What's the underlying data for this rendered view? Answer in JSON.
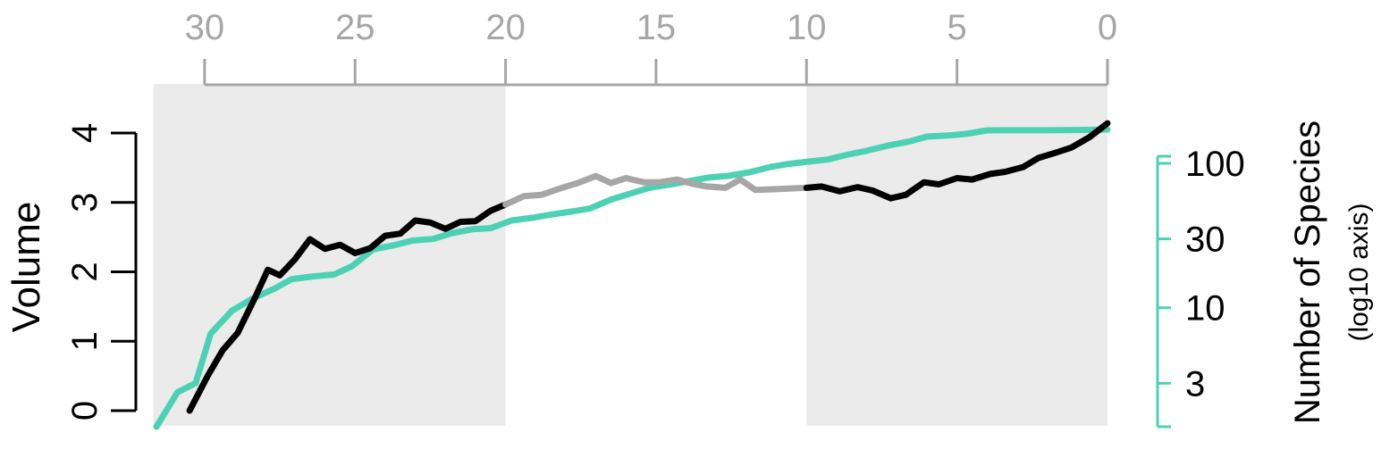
{
  "chart_data": {
    "type": "line",
    "title": "",
    "x_axis": {
      "label": "",
      "reversed": true,
      "range": [
        31.7,
        0
      ],
      "ticks": [
        30,
        25,
        20,
        15,
        10,
        5,
        0
      ],
      "tick_labels": [
        "30",
        "25",
        "20",
        "15",
        "10",
        "5",
        "0"
      ],
      "color": "#a6a6a6"
    },
    "y_axis_left": {
      "label": "Volume",
      "range": [
        0,
        4
      ],
      "ticks": [
        0,
        1,
        2,
        3,
        4
      ],
      "tick_labels": [
        "0",
        "1",
        "2",
        "3",
        "4"
      ]
    },
    "y_axis_right": {
      "label": "Number of Species",
      "sublabel": "(log10 axis)",
      "scale": "log10",
      "range": [
        1.5,
        160
      ],
      "ticks": [
        3,
        10,
        30,
        100
      ],
      "tick_labels": [
        "3",
        "10",
        "30",
        "100"
      ],
      "color": "#4dd1b4"
    },
    "shaded_bands": [
      {
        "from": 31.7,
        "to": 20,
        "color": "#ebebeb"
      },
      {
        "from": 10,
        "to": 0,
        "color": "#ebebeb"
      }
    ],
    "grid": false,
    "series": [
      {
        "axis": "right",
        "color": "#4dd1b4",
        "x": [
          31.6,
          30.9,
          30.3,
          29.8,
          29.1,
          28.4,
          27.7,
          27.1,
          26.4,
          25.7,
          25.1,
          24.4,
          23.7,
          23.1,
          22.4,
          21.8,
          21.1,
          20.5,
          19.8,
          19.1,
          18.5,
          17.8,
          17.2,
          16.5,
          15.9,
          15.2,
          14.5,
          13.9,
          13.2,
          12.6,
          11.9,
          11.2,
          10.6,
          9.9,
          9.3,
          8.6,
          8.0,
          7.3,
          6.6,
          6.0,
          5.3,
          4.7,
          4.0,
          3.4,
          2.7,
          2.0,
          1.4,
          0.7,
          0
        ],
        "y": [
          1.5,
          2.6,
          3.0,
          6.6,
          9.5,
          11.6,
          13.5,
          15.8,
          16.5,
          17.0,
          19.4,
          25.4,
          27.1,
          29.2,
          30.0,
          32.8,
          35.0,
          35.6,
          40.2,
          42.0,
          44.2,
          46.4,
          48.7,
          56.1,
          61.4,
          67.9,
          71.6,
          75.5,
          80.1,
          81.9,
          86.7,
          94.3,
          99.2,
          103.0,
          106.3,
          115.3,
          122.2,
          132.7,
          141.6,
          153.4,
          155.9,
          160.1,
          169.4,
          169.6,
          169.6,
          169.7,
          169.9,
          170.5,
          171.5
        ]
      },
      {
        "axis": "left",
        "color": "#000000",
        "x": [
          30.5,
          29.9,
          29.4,
          28.9,
          28.3,
          27.9,
          27.5,
          27.0,
          26.5,
          26.0,
          25.5,
          25.0,
          24.5,
          24.0,
          23.5,
          23.0,
          22.5,
          22.0,
          21.5,
          21.0,
          20.5,
          20.0
        ],
        "y": [
          0.0,
          0.5,
          0.87,
          1.12,
          1.65,
          2.03,
          1.95,
          2.18,
          2.47,
          2.33,
          2.39,
          2.27,
          2.34,
          2.52,
          2.55,
          2.74,
          2.71,
          2.62,
          2.72,
          2.73,
          2.88,
          2.97
        ]
      },
      {
        "axis": "left",
        "color": "#a6a6a6",
        "x": [
          20.0,
          19.4,
          18.8,
          18.2,
          17.6,
          17.0,
          16.5,
          16.0,
          15.4,
          14.9,
          14.3,
          13.8,
          13.3,
          12.7,
          12.2,
          11.7,
          11.1,
          10.6,
          10.0
        ],
        "y": [
          2.97,
          3.09,
          3.11,
          3.2,
          3.28,
          3.38,
          3.28,
          3.35,
          3.29,
          3.29,
          3.33,
          3.27,
          3.23,
          3.21,
          3.33,
          3.18,
          3.19,
          3.2,
          3.21
        ]
      },
      {
        "axis": "left",
        "color": "#000000",
        "x": [
          10.0,
          9.5,
          8.9,
          8.3,
          7.8,
          7.2,
          6.7,
          6.1,
          5.6,
          5.0,
          4.5,
          3.9,
          3.4,
          2.8,
          2.3,
          1.7,
          1.2,
          0.6,
          0
        ],
        "y": [
          3.21,
          3.23,
          3.16,
          3.22,
          3.17,
          3.06,
          3.11,
          3.29,
          3.26,
          3.35,
          3.33,
          3.41,
          3.44,
          3.51,
          3.64,
          3.72,
          3.79,
          3.94,
          4.14
        ]
      }
    ]
  }
}
